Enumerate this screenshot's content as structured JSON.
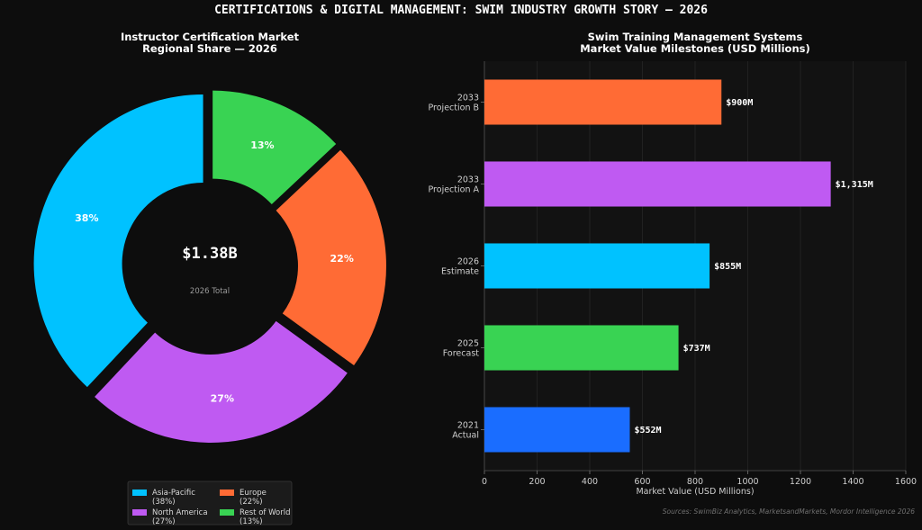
{
  "figure_title": "CERTIFICATIONS & DIGITAL MANAGEMENT: SWIM INDUSTRY GROWTH STORY — 2026",
  "source_note": "Sources: SwimBiz Analytics, MarketsandMarkets, Mordor Intelligence 2026",
  "chart_data": [
    {
      "type": "pie",
      "variant": "donut",
      "title_lines": [
        "Instructor Certification Market",
        "Regional Share — 2026"
      ],
      "center_value": "$1.38B",
      "center_label": "2026 Total",
      "slices": [
        {
          "name": "Asia-Pacific",
          "value": 38,
          "label": "38%",
          "legend_pct": "(38%)",
          "color": "#00c2ff"
        },
        {
          "name": "North America",
          "value": 27,
          "label": "27%",
          "legend_pct": "(27%)",
          "color": "#bf5af2"
        },
        {
          "name": "Europe",
          "value": 22,
          "label": "22%",
          "legend_pct": "(22%)",
          "color": "#ff6b35"
        },
        {
          "name": "Rest of World",
          "value": 13,
          "label": "13%",
          "legend_pct": "(13%)",
          "color": "#39d353"
        }
      ],
      "legend_placement": "bottom-center"
    },
    {
      "type": "bar",
      "orientation": "horizontal",
      "title_lines": [
        "Swim Training Management Systems",
        "Market Value Milestones (USD Millions)"
      ],
      "xlabel": "Market Value (USD Millions)",
      "xlim": [
        0,
        1600
      ],
      "xticks": [
        0,
        200,
        400,
        600,
        800,
        1000,
        1200,
        1400,
        1600
      ],
      "grid": true,
      "bars": [
        {
          "label_lines": [
            "2033",
            "Projection B"
          ],
          "value": 900,
          "value_label": "$900M",
          "color": "#ff6b35"
        },
        {
          "label_lines": [
            "2033",
            "Projection A"
          ],
          "value": 1315,
          "value_label": "$1,315M",
          "color": "#bf5af2"
        },
        {
          "label_lines": [
            "2026",
            "Estimate"
          ],
          "value": 855,
          "value_label": "$855M",
          "color": "#00c2ff"
        },
        {
          "label_lines": [
            "2025",
            "Forecast"
          ],
          "value": 737,
          "value_label": "$737M",
          "color": "#39d353"
        },
        {
          "label_lines": [
            "2021",
            "Actual"
          ],
          "value": 552,
          "value_label": "$552M",
          "color": "#1a6dff"
        }
      ]
    }
  ]
}
